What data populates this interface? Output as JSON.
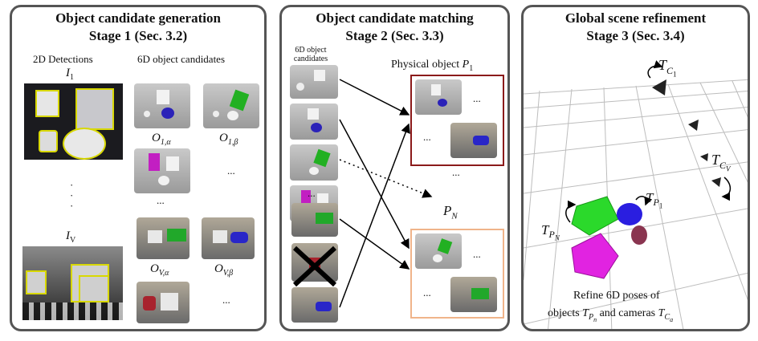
{
  "stage1": {
    "title": "Object candidate generation",
    "subtitle": "Stage 1 (Sec. 3.2)",
    "detections_label": "2D Detections",
    "candidates_label": "6D object candidates",
    "image_1": "I",
    "image_1_sub": "1",
    "image_v": "I",
    "image_v_sub": "V",
    "cand_labels": [
      {
        "main": "O",
        "sub": "1,α"
      },
      {
        "main": "O",
        "sub": "1,β"
      },
      {
        "main": "O",
        "sub": "V,α"
      },
      {
        "main": "O",
        "sub": "V,β"
      }
    ],
    "ellipsis": "..."
  },
  "stage2": {
    "title": "Object candidate matching",
    "subtitle": "Stage 2 (Sec. 3.3)",
    "cand_label_line1": "6D object",
    "cand_label_line2": "candidates",
    "physical_label": "Physical object",
    "p1": "P",
    "p1_sub": "1",
    "pn": "P",
    "pn_sub": "N",
    "ellipsis": "...",
    "colors": {
      "p1_box": "#8b1a1a",
      "pn_box": "#f0b48a"
    }
  },
  "stage3": {
    "title": "Global scene refinement",
    "subtitle": "Stage 3 (Sec. 3.4)",
    "t_c1": "T",
    "t_c1_sub": "C",
    "t_c1_subsub": "1",
    "t_cv": "T",
    "t_cv_sub": "C",
    "t_cv_subsub": "V",
    "t_p1": "T",
    "t_p1_sub": "P",
    "t_p1_subsub": "1",
    "t_pn": "T",
    "t_pn_sub": "P",
    "t_pn_subsub": "N",
    "caption_line1": "Refine 6D poses of",
    "caption_line2_a": "objects",
    "caption_line2_b": "and cameras",
    "caption_tp": "T",
    "caption_tp_sub": "P",
    "caption_tp_subsub": "n",
    "caption_tc": "T",
    "caption_tc_sub": "C",
    "caption_tc_subsub": "a"
  }
}
